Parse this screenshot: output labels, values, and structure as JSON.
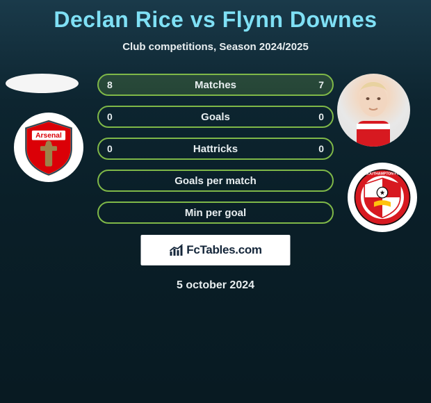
{
  "title": "Declan Rice vs Flynn Downes",
  "subtitle": "Club competitions, Season 2024/2025",
  "date": "5 october 2024",
  "brand": "FcTables.com",
  "player_left": {
    "name": "Declan Rice",
    "club": "Arsenal",
    "club_colors": {
      "primary": "#db0007",
      "secondary": "#ffffff",
      "accent": "#9c824a"
    }
  },
  "player_right": {
    "name": "Flynn Downes",
    "club": "Southampton",
    "club_colors": {
      "primary": "#d71920",
      "secondary": "#ffffff",
      "accent": "#ffc20e"
    }
  },
  "bars": [
    {
      "label": "Matches",
      "left": "8",
      "right": "7",
      "fill_left_pct": 53,
      "fill_right_pct": 47,
      "border": "#7fb848"
    },
    {
      "label": "Goals",
      "left": "0",
      "right": "0",
      "fill_left_pct": 0,
      "fill_right_pct": 0,
      "border": "#7fb848"
    },
    {
      "label": "Hattricks",
      "left": "0",
      "right": "0",
      "fill_left_pct": 0,
      "fill_right_pct": 0,
      "border": "#7fb848"
    },
    {
      "label": "Goals per match",
      "left": "",
      "right": "",
      "fill_left_pct": 0,
      "fill_right_pct": 0,
      "border": "#7fb848"
    },
    {
      "label": "Min per goal",
      "left": "",
      "right": "",
      "fill_left_pct": 0,
      "fill_right_pct": 0,
      "border": "#7fb848"
    }
  ],
  "colors": {
    "title": "#7fe0f5",
    "text": "#e8eef0",
    "bg_top": "#1a3a4a",
    "bg_bottom": "#081a22",
    "bar_border": "#7fb848"
  }
}
